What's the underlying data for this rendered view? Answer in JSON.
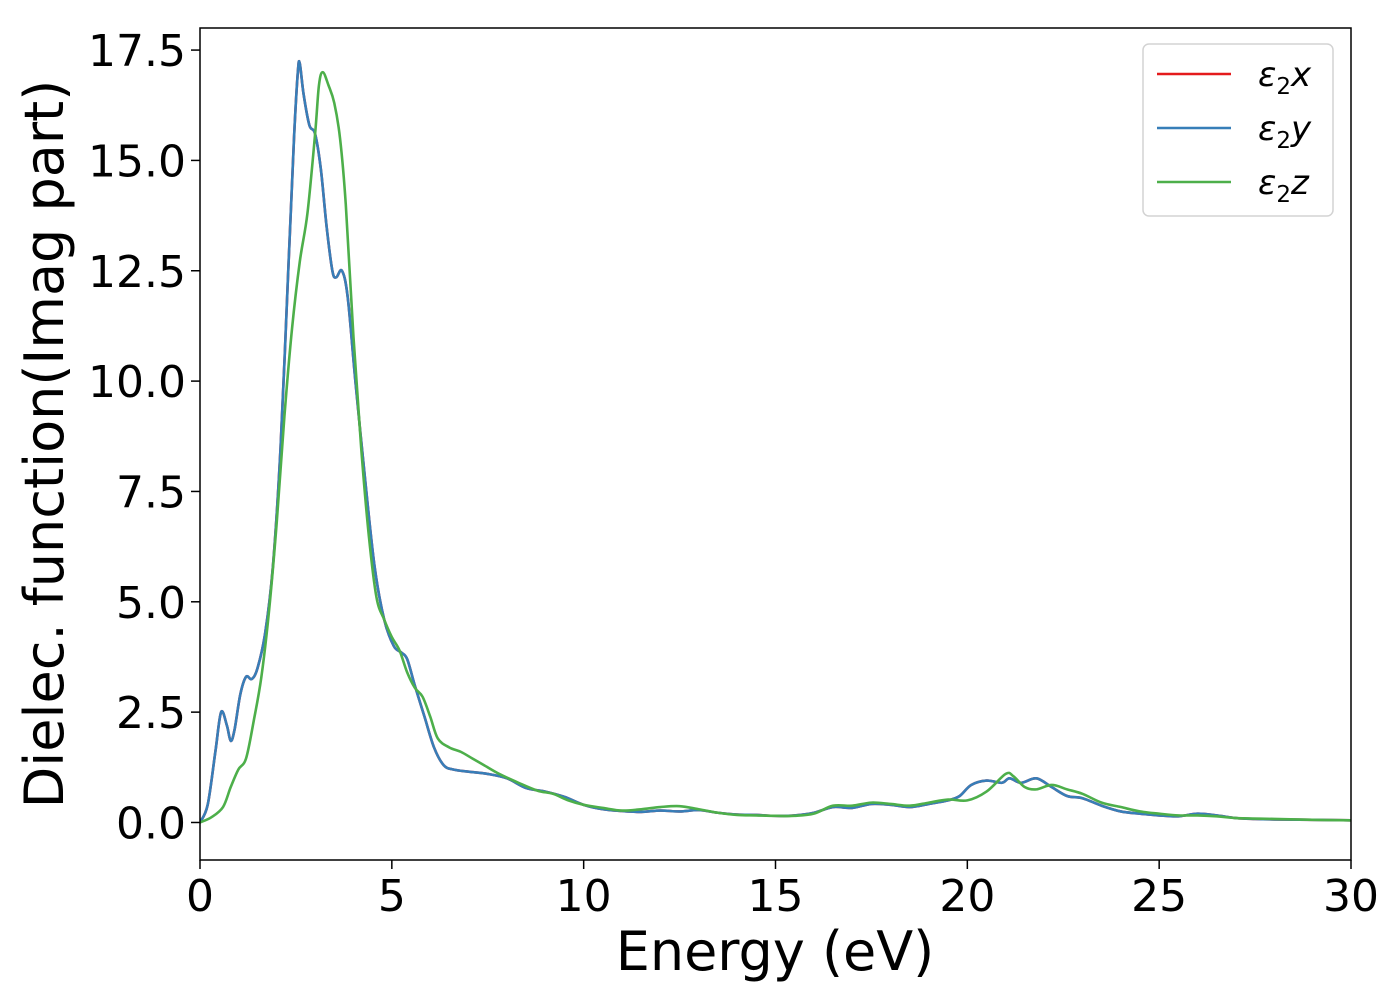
{
  "chart_data": {
    "type": "line",
    "title": "",
    "xlabel": "Energy (eV)",
    "ylabel": "Dielec. function(Imag part)",
    "xlim": [
      0,
      30
    ],
    "ylim": [
      -0.85,
      18.0
    ],
    "xticks": [
      0,
      5,
      10,
      15,
      20,
      25,
      30
    ],
    "xtick_labels": [
      "0",
      "5",
      "10",
      "15",
      "20",
      "25",
      "30"
    ],
    "yticks": [
      0.0,
      2.5,
      5.0,
      7.5,
      10.0,
      12.5,
      15.0,
      17.5
    ],
    "ytick_labels": [
      "0.0",
      "2.5",
      "5.0",
      "7.5",
      "10.0",
      "12.5",
      "15.0",
      "17.5"
    ],
    "grid": false,
    "legend_position": "top-right",
    "series": [
      {
        "name": "ε2x",
        "legend_base": "ε",
        "legend_sub": "2",
        "legend_suffix": "x",
        "color": "#e41a1c",
        "points": [
          [
            0,
            0
          ],
          [
            0.2,
            0.4
          ],
          [
            0.4,
            1.6
          ],
          [
            0.55,
            2.5
          ],
          [
            0.7,
            2.2
          ],
          [
            0.8,
            1.85
          ],
          [
            0.9,
            2.1
          ],
          [
            1.05,
            2.9
          ],
          [
            1.2,
            3.3
          ],
          [
            1.35,
            3.25
          ],
          [
            1.5,
            3.5
          ],
          [
            1.7,
            4.3
          ],
          [
            1.9,
            5.8
          ],
          [
            2.1,
            8.5
          ],
          [
            2.3,
            12.5
          ],
          [
            2.45,
            15.5
          ],
          [
            2.55,
            17.0
          ],
          [
            2.6,
            17.2
          ],
          [
            2.7,
            16.5
          ],
          [
            2.85,
            15.8
          ],
          [
            3.0,
            15.6
          ],
          [
            3.15,
            14.8
          ],
          [
            3.3,
            13.5
          ],
          [
            3.45,
            12.5
          ],
          [
            3.55,
            12.35
          ],
          [
            3.7,
            12.5
          ],
          [
            3.85,
            11.9
          ],
          [
            4.05,
            10.0
          ],
          [
            4.3,
            7.8
          ],
          [
            4.55,
            5.8
          ],
          [
            4.8,
            4.6
          ],
          [
            5.05,
            4.0
          ],
          [
            5.25,
            3.85
          ],
          [
            5.4,
            3.7
          ],
          [
            5.6,
            3.1
          ],
          [
            5.85,
            2.4
          ],
          [
            6.1,
            1.7
          ],
          [
            6.35,
            1.3
          ],
          [
            6.6,
            1.2
          ],
          [
            7.0,
            1.15
          ],
          [
            7.5,
            1.1
          ],
          [
            8.0,
            1.0
          ],
          [
            8.5,
            0.78
          ],
          [
            9.0,
            0.7
          ],
          [
            9.5,
            0.58
          ],
          [
            10.0,
            0.4
          ],
          [
            10.5,
            0.3
          ],
          [
            11.0,
            0.26
          ],
          [
            11.5,
            0.24
          ],
          [
            12.0,
            0.27
          ],
          [
            12.5,
            0.25
          ],
          [
            13.0,
            0.28
          ],
          [
            13.5,
            0.22
          ],
          [
            14.0,
            0.18
          ],
          [
            14.5,
            0.17
          ],
          [
            15.0,
            0.15
          ],
          [
            15.5,
            0.16
          ],
          [
            16.0,
            0.22
          ],
          [
            16.5,
            0.35
          ],
          [
            17.0,
            0.33
          ],
          [
            17.5,
            0.42
          ],
          [
            18.0,
            0.4
          ],
          [
            18.5,
            0.35
          ],
          [
            19.0,
            0.42
          ],
          [
            19.5,
            0.5
          ],
          [
            19.8,
            0.6
          ],
          [
            20.1,
            0.85
          ],
          [
            20.5,
            0.95
          ],
          [
            20.9,
            0.9
          ],
          [
            21.1,
            1.0
          ],
          [
            21.4,
            0.9
          ],
          [
            21.8,
            1.0
          ],
          [
            22.2,
            0.8
          ],
          [
            22.6,
            0.6
          ],
          [
            23.0,
            0.55
          ],
          [
            23.5,
            0.38
          ],
          [
            24.0,
            0.25
          ],
          [
            24.5,
            0.2
          ],
          [
            25.0,
            0.16
          ],
          [
            25.5,
            0.14
          ],
          [
            26.0,
            0.2
          ],
          [
            26.5,
            0.16
          ],
          [
            27.0,
            0.1
          ],
          [
            27.5,
            0.08
          ],
          [
            28.0,
            0.07
          ],
          [
            29.0,
            0.06
          ],
          [
            30.0,
            0.05
          ]
        ]
      },
      {
        "name": "ε2y",
        "legend_base": "ε",
        "legend_sub": "2",
        "legend_suffix": "y",
        "color": "#377eb8",
        "points": [
          [
            0,
            0
          ],
          [
            0.2,
            0.4
          ],
          [
            0.4,
            1.6
          ],
          [
            0.55,
            2.5
          ],
          [
            0.7,
            2.2
          ],
          [
            0.8,
            1.85
          ],
          [
            0.9,
            2.1
          ],
          [
            1.05,
            2.9
          ],
          [
            1.2,
            3.3
          ],
          [
            1.35,
            3.25
          ],
          [
            1.5,
            3.5
          ],
          [
            1.7,
            4.3
          ],
          [
            1.9,
            5.8
          ],
          [
            2.1,
            8.5
          ],
          [
            2.3,
            12.5
          ],
          [
            2.45,
            15.5
          ],
          [
            2.55,
            17.0
          ],
          [
            2.6,
            17.2
          ],
          [
            2.7,
            16.5
          ],
          [
            2.85,
            15.8
          ],
          [
            3.0,
            15.6
          ],
          [
            3.15,
            14.8
          ],
          [
            3.3,
            13.5
          ],
          [
            3.45,
            12.5
          ],
          [
            3.55,
            12.35
          ],
          [
            3.7,
            12.5
          ],
          [
            3.85,
            11.9
          ],
          [
            4.05,
            10.0
          ],
          [
            4.3,
            7.8
          ],
          [
            4.55,
            5.8
          ],
          [
            4.8,
            4.6
          ],
          [
            5.05,
            4.0
          ],
          [
            5.25,
            3.85
          ],
          [
            5.4,
            3.7
          ],
          [
            5.6,
            3.1
          ],
          [
            5.85,
            2.4
          ],
          [
            6.1,
            1.7
          ],
          [
            6.35,
            1.3
          ],
          [
            6.6,
            1.2
          ],
          [
            7.0,
            1.15
          ],
          [
            7.5,
            1.1
          ],
          [
            8.0,
            1.0
          ],
          [
            8.5,
            0.78
          ],
          [
            9.0,
            0.7
          ],
          [
            9.5,
            0.58
          ],
          [
            10.0,
            0.4
          ],
          [
            10.5,
            0.3
          ],
          [
            11.0,
            0.26
          ],
          [
            11.5,
            0.24
          ],
          [
            12.0,
            0.27
          ],
          [
            12.5,
            0.25
          ],
          [
            13.0,
            0.28
          ],
          [
            13.5,
            0.22
          ],
          [
            14.0,
            0.18
          ],
          [
            14.5,
            0.17
          ],
          [
            15.0,
            0.15
          ],
          [
            15.5,
            0.16
          ],
          [
            16.0,
            0.22
          ],
          [
            16.5,
            0.35
          ],
          [
            17.0,
            0.33
          ],
          [
            17.5,
            0.42
          ],
          [
            18.0,
            0.4
          ],
          [
            18.5,
            0.35
          ],
          [
            19.0,
            0.42
          ],
          [
            19.5,
            0.5
          ],
          [
            19.8,
            0.6
          ],
          [
            20.1,
            0.85
          ],
          [
            20.5,
            0.95
          ],
          [
            20.9,
            0.9
          ],
          [
            21.1,
            1.0
          ],
          [
            21.4,
            0.9
          ],
          [
            21.8,
            1.0
          ],
          [
            22.2,
            0.8
          ],
          [
            22.6,
            0.6
          ],
          [
            23.0,
            0.55
          ],
          [
            23.5,
            0.38
          ],
          [
            24.0,
            0.25
          ],
          [
            24.5,
            0.2
          ],
          [
            25.0,
            0.16
          ],
          [
            25.5,
            0.14
          ],
          [
            26.0,
            0.2
          ],
          [
            26.5,
            0.16
          ],
          [
            27.0,
            0.1
          ],
          [
            27.5,
            0.08
          ],
          [
            28.0,
            0.07
          ],
          [
            29.0,
            0.06
          ],
          [
            30.0,
            0.05
          ]
        ]
      },
      {
        "name": "ε2z",
        "legend_base": "ε",
        "legend_sub": "2",
        "legend_suffix": "z",
        "color": "#4daf4a",
        "points": [
          [
            0,
            0
          ],
          [
            0.3,
            0.12
          ],
          [
            0.6,
            0.35
          ],
          [
            0.8,
            0.8
          ],
          [
            1.0,
            1.2
          ],
          [
            1.2,
            1.45
          ],
          [
            1.4,
            2.3
          ],
          [
            1.6,
            3.3
          ],
          [
            1.8,
            4.8
          ],
          [
            2.0,
            6.8
          ],
          [
            2.2,
            9.2
          ],
          [
            2.4,
            11.2
          ],
          [
            2.6,
            12.7
          ],
          [
            2.8,
            13.8
          ],
          [
            3.0,
            15.6
          ],
          [
            3.1,
            16.7
          ],
          [
            3.2,
            17.0
          ],
          [
            3.35,
            16.7
          ],
          [
            3.5,
            16.3
          ],
          [
            3.65,
            15.5
          ],
          [
            3.8,
            14.0
          ],
          [
            4.0,
            11.0
          ],
          [
            4.2,
            8.5
          ],
          [
            4.4,
            6.5
          ],
          [
            4.6,
            5.1
          ],
          [
            4.8,
            4.6
          ],
          [
            5.0,
            4.2
          ],
          [
            5.2,
            3.9
          ],
          [
            5.4,
            3.4
          ],
          [
            5.6,
            3.05
          ],
          [
            5.8,
            2.85
          ],
          [
            6.0,
            2.4
          ],
          [
            6.2,
            1.9
          ],
          [
            6.5,
            1.7
          ],
          [
            6.8,
            1.6
          ],
          [
            7.1,
            1.45
          ],
          [
            7.4,
            1.3
          ],
          [
            7.8,
            1.1
          ],
          [
            8.3,
            0.9
          ],
          [
            8.8,
            0.72
          ],
          [
            9.2,
            0.65
          ],
          [
            9.6,
            0.5
          ],
          [
            10.0,
            0.4
          ],
          [
            10.5,
            0.33
          ],
          [
            11.0,
            0.27
          ],
          [
            11.5,
            0.3
          ],
          [
            12.0,
            0.35
          ],
          [
            12.5,
            0.37
          ],
          [
            13.0,
            0.3
          ],
          [
            13.5,
            0.22
          ],
          [
            14.0,
            0.17
          ],
          [
            14.5,
            0.16
          ],
          [
            15.0,
            0.15
          ],
          [
            15.5,
            0.15
          ],
          [
            16.0,
            0.2
          ],
          [
            16.5,
            0.38
          ],
          [
            17.0,
            0.38
          ],
          [
            17.5,
            0.45
          ],
          [
            18.0,
            0.42
          ],
          [
            18.5,
            0.38
          ],
          [
            19.0,
            0.45
          ],
          [
            19.5,
            0.52
          ],
          [
            20.0,
            0.5
          ],
          [
            20.5,
            0.7
          ],
          [
            21.0,
            1.1
          ],
          [
            21.2,
            1.05
          ],
          [
            21.5,
            0.8
          ],
          [
            21.8,
            0.75
          ],
          [
            22.2,
            0.85
          ],
          [
            22.6,
            0.75
          ],
          [
            23.0,
            0.65
          ],
          [
            23.5,
            0.45
          ],
          [
            24.0,
            0.35
          ],
          [
            24.5,
            0.25
          ],
          [
            25.0,
            0.2
          ],
          [
            25.5,
            0.16
          ],
          [
            26.0,
            0.16
          ],
          [
            26.5,
            0.14
          ],
          [
            27.0,
            0.1
          ],
          [
            28.0,
            0.08
          ],
          [
            29.0,
            0.06
          ],
          [
            30.0,
            0.05
          ]
        ]
      }
    ]
  }
}
